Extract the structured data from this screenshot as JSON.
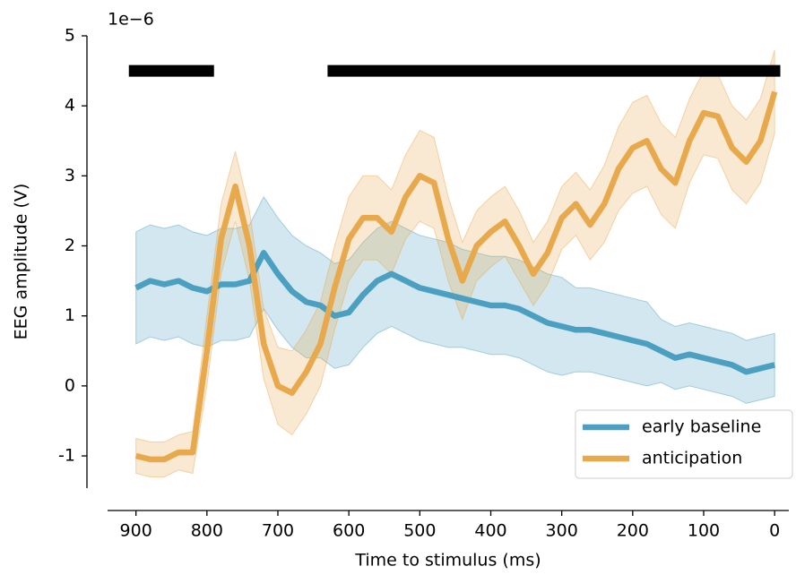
{
  "chart_data": {
    "type": "line",
    "offset_label": "1e−6",
    "xlabel": "Time to stimulus (ms)",
    "ylabel": "EEG amplitude (V)",
    "x": [
      900,
      880,
      860,
      840,
      820,
      800,
      780,
      760,
      740,
      720,
      700,
      680,
      660,
      640,
      620,
      600,
      580,
      560,
      540,
      520,
      500,
      480,
      460,
      440,
      420,
      400,
      380,
      360,
      340,
      320,
      300,
      280,
      260,
      240,
      220,
      200,
      180,
      160,
      140,
      120,
      100,
      80,
      60,
      40,
      20,
      0
    ],
    "series": [
      {
        "name": "early baseline",
        "color": "#4b9fc0",
        "values": [
          1.4,
          1.5,
          1.45,
          1.5,
          1.4,
          1.35,
          1.45,
          1.45,
          1.5,
          1.9,
          1.6,
          1.35,
          1.2,
          1.15,
          1.0,
          1.05,
          1.3,
          1.5,
          1.6,
          1.5,
          1.4,
          1.35,
          1.3,
          1.25,
          1.2,
          1.15,
          1.15,
          1.1,
          1.0,
          0.9,
          0.85,
          0.8,
          0.8,
          0.75,
          0.7,
          0.65,
          0.6,
          0.5,
          0.4,
          0.45,
          0.4,
          0.35,
          0.3,
          0.2,
          0.25,
          0.3
        ],
        "error": [
          0.8,
          0.8,
          0.8,
          0.8,
          0.8,
          0.8,
          0.8,
          0.8,
          0.8,
          0.8,
          0.8,
          0.8,
          0.8,
          0.75,
          0.75,
          0.75,
          0.75,
          0.75,
          0.75,
          0.75,
          0.75,
          0.75,
          0.75,
          0.7,
          0.7,
          0.7,
          0.7,
          0.7,
          0.7,
          0.7,
          0.7,
          0.6,
          0.6,
          0.6,
          0.6,
          0.6,
          0.6,
          0.45,
          0.45,
          0.45,
          0.45,
          0.45,
          0.45,
          0.45,
          0.45,
          0.45
        ]
      },
      {
        "name": "anticipation",
        "color": "#e8a94c",
        "values": [
          -1.0,
          -1.05,
          -1.05,
          -0.95,
          -0.95,
          0.5,
          2.1,
          2.85,
          2.0,
          0.6,
          0.0,
          -0.1,
          0.2,
          0.6,
          1.4,
          2.1,
          2.4,
          2.4,
          2.2,
          2.7,
          3.0,
          2.9,
          2.1,
          1.5,
          2.0,
          2.2,
          2.35,
          2.0,
          1.6,
          1.9,
          2.4,
          2.6,
          2.3,
          2.6,
          3.1,
          3.4,
          3.5,
          3.1,
          2.9,
          3.5,
          3.9,
          3.85,
          3.4,
          3.2,
          3.5,
          4.2
        ],
        "error": [
          0.25,
          0.25,
          0.25,
          0.25,
          0.3,
          0.5,
          0.5,
          0.5,
          0.5,
          0.5,
          0.55,
          0.6,
          0.6,
          0.6,
          0.6,
          0.6,
          0.6,
          0.6,
          0.6,
          0.6,
          0.65,
          0.65,
          0.6,
          0.55,
          0.5,
          0.5,
          0.5,
          0.5,
          0.45,
          0.45,
          0.45,
          0.45,
          0.5,
          0.55,
          0.6,
          0.65,
          0.65,
          0.65,
          0.65,
          0.6,
          0.6,
          0.6,
          0.6,
          0.6,
          0.6,
          0.6
        ]
      }
    ],
    "significance": {
      "y": 4.5,
      "spans": [
        [
          910,
          790
        ],
        [
          630,
          -8
        ]
      ]
    },
    "xlim": [
      940,
      -20
    ],
    "ylim": [
      -1.46,
      5
    ],
    "xticks": [
      900,
      800,
      700,
      600,
      500,
      400,
      300,
      200,
      100,
      0
    ],
    "yticks": [
      -1,
      0,
      1,
      2,
      3,
      4,
      5
    ],
    "legend": "lower right"
  }
}
